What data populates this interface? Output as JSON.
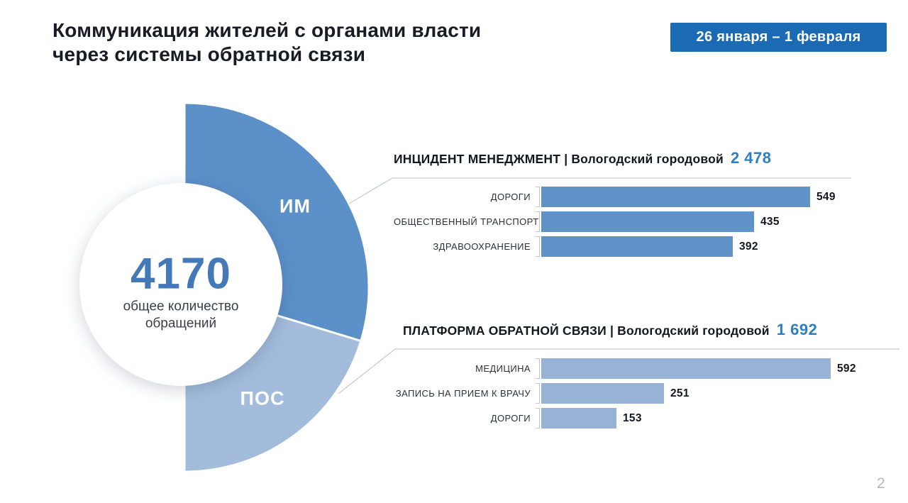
{
  "header": {
    "title": "Коммуникация жителей с органами власти\nчерез системы обратной связи",
    "date_badge": "26 января – 1 февраля"
  },
  "donut": {
    "center_value": "4170",
    "center_caption": "общее количество\nобращений",
    "segments": [
      {
        "label": "ИМ",
        "value": 2478,
        "color": "#5b90c8"
      },
      {
        "label": "ПОС",
        "value": 1692,
        "color": "#a3bcdb"
      }
    ]
  },
  "sections": [
    {
      "title": "ИНЦИДЕНТ МЕНЕДЖМЕНТ | Вологодский городовой",
      "total_display": "2 478",
      "rows": [
        {
          "label": "ДОРОГИ",
          "value": 549
        },
        {
          "label": "ОБЩЕСТВЕННЫЙ ТРАНСПОРТ",
          "value": 435
        },
        {
          "label": "ЗДРАВООХРАНЕНИЕ",
          "value": 392
        }
      ]
    },
    {
      "title": "ПЛАТФОРМА ОБРАТНОЙ СВЯЗИ | Вологодский городовой",
      "total_display": "1 692",
      "rows": [
        {
          "label": "МЕДИЦИНА",
          "value": 592
        },
        {
          "label": "ЗАПИСЬ НА ПРИЕМ К ВРАЧУ",
          "value": 251
        },
        {
          "label": "ДОРОГИ",
          "value": 153
        }
      ]
    }
  ],
  "page_number": "2",
  "colors": {
    "badge-bg": "#1b6bb4",
    "im-color": "#5b90c8",
    "pos-color": "#a3bcdb",
    "bars1-color": "#5f93c8",
    "bars2-color": "#97b2d4",
    "total-blue": "#2d7fc0",
    "center-blue": "#4478b6"
  },
  "chart_data": [
    {
      "type": "pie",
      "shape": "right-half-donut",
      "title": "общее количество обращений",
      "total": 4170,
      "slices": [
        {
          "label": "ИМ",
          "value": 2478
        },
        {
          "label": "ПОС",
          "value": 1692
        }
      ],
      "legend_position": "on-slices"
    },
    {
      "type": "bar",
      "orientation": "horizontal",
      "title": "ИНЦИДЕНТ МЕНЕДЖМЕНТ | Вологодский городовой",
      "total": 2478,
      "categories": [
        "ДОРОГИ",
        "ОБЩЕСТВЕННЫЙ ТРАНСПОРТ",
        "ЗДРАВООХРАНЕНИЕ"
      ],
      "values": [
        549,
        435,
        392
      ],
      "xlim": [
        0,
        620
      ],
      "grid": false,
      "data_labels": true
    },
    {
      "type": "bar",
      "orientation": "horizontal",
      "title": "ПЛАТФОРМА ОБРАТНОЙ СВЯЗИ | Вологодский городовой",
      "total": 1692,
      "categories": [
        "МЕДИЦИНА",
        "ЗАПИСЬ НА ПРИЕМ К ВРАЧУ",
        "ДОРОГИ"
      ],
      "values": [
        592,
        251,
        153
      ],
      "xlim": [
        0,
        620
      ],
      "grid": false,
      "data_labels": true
    }
  ]
}
